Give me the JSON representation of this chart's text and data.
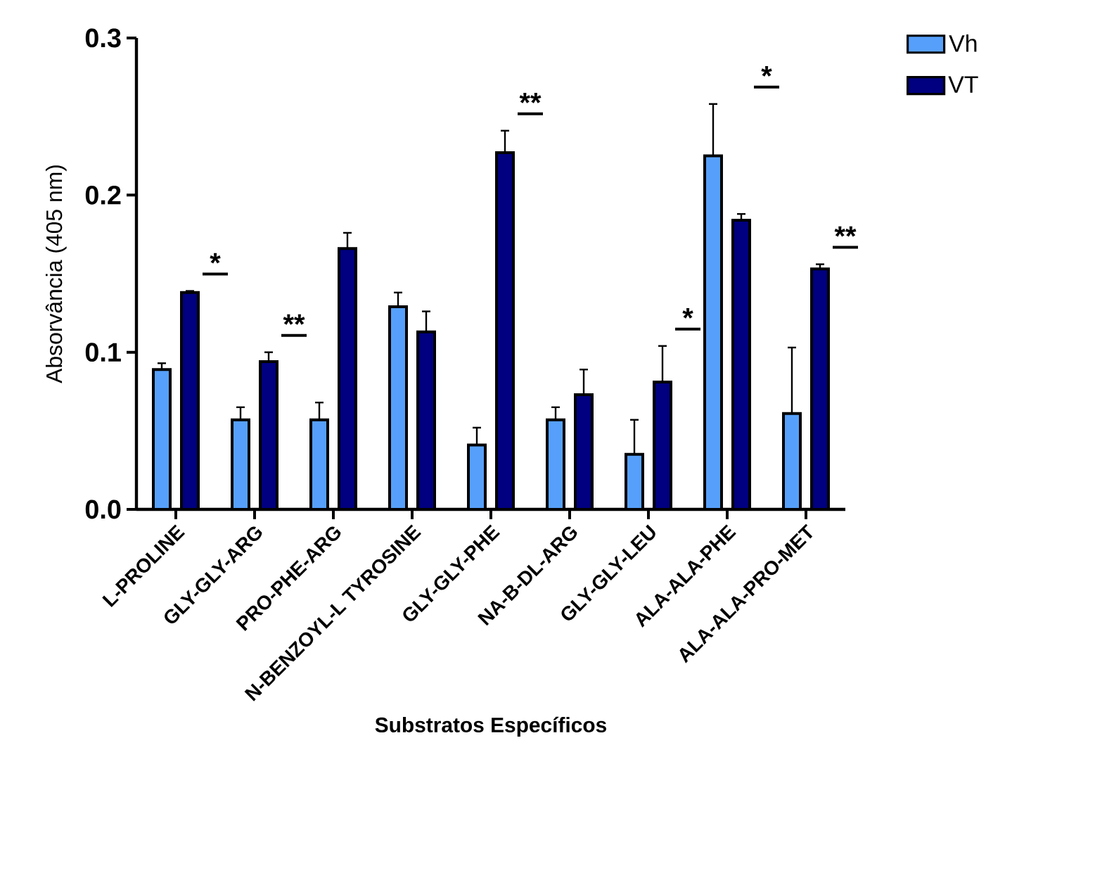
{
  "chart_data": {
    "type": "bar",
    "xlabel": "Substratos Específicos",
    "ylabel": "Absorvância (405 nm)",
    "categories": [
      "L-PROLINE",
      "GLY-GLY-ARG",
      "PRO-PHE-ARG",
      "N-BENZOYL-L TYROSINE",
      "GLY-GLY-PHE",
      "NA-B-DL-ARG",
      "GLY-GLY-LEU",
      "ALA-ALA-PHE",
      "ALA-ALA-PRO-MET"
    ],
    "series": [
      {
        "name": "Vh",
        "color": "#56a0fb",
        "values": [
          0.089,
          0.057,
          0.057,
          0.129,
          0.041,
          0.057,
          0.035,
          0.225,
          0.061
        ],
        "errors": [
          0.004,
          0.008,
          0.011,
          0.009,
          0.011,
          0.008,
          0.022,
          0.033,
          0.042
        ]
      },
      {
        "name": "VT",
        "color": "#000080",
        "values": [
          0.138,
          0.094,
          0.166,
          0.113,
          0.227,
          0.073,
          0.081,
          0.184,
          0.153
        ],
        "errors": [
          0.001,
          0.006,
          0.01,
          0.013,
          0.014,
          0.016,
          0.023,
          0.004,
          0.003
        ]
      }
    ],
    "ylim": [
      0,
      0.3
    ],
    "yticks": [
      {
        "value": 0,
        "label": "0.0"
      },
      0.1,
      0.2,
      0.3
    ],
    "legend": "top right",
    "grid": false,
    "annotations": [
      "*",
      "**",
      "**",
      "*",
      "*",
      "**"
    ]
  }
}
